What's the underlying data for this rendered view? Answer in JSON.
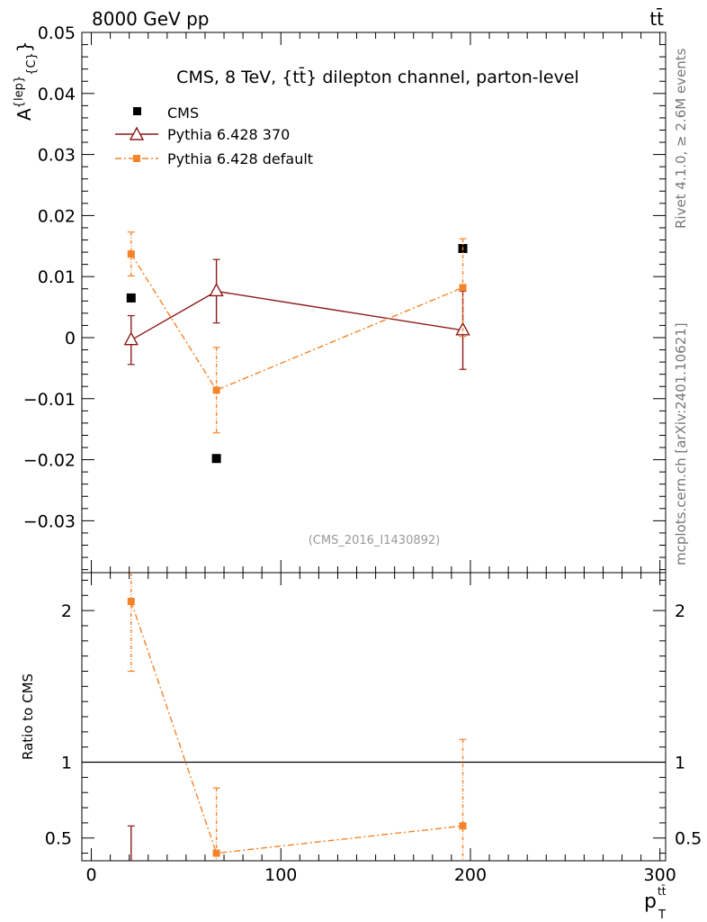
{
  "header": {
    "left_label": "8000 GeV pp",
    "right_label": "tt̄"
  },
  "side_labels": {
    "rivet": "Rivet 4.1.0, ≥ 2.6M events",
    "mcplots": "mcplots.cern.ch [arXiv:2401.10621]"
  },
  "chart_data": {
    "type": "scatter",
    "title": "CMS, 8 TeV, {tt̄} dilepton channel, parton-level",
    "watermark": "(CMS_2016_I1430892)",
    "ylabel": "A^{lep}_{C}",
    "ylabel_base": "A",
    "ylabel_sup": "{lep}",
    "ylabel_sub": "{C}",
    "ylabel_close": "}",
    "xlabel_base": "p",
    "xlabel_sup": "tt̄",
    "xlabel_sub": "T",
    "xlim": [
      -5,
      303
    ],
    "ylim": [
      -0.0385,
      0.05
    ],
    "x_ticks": [
      0,
      100,
      200,
      300
    ],
    "x_tick_labels": [
      "0",
      "100",
      "200",
      "300"
    ],
    "y_ticks": [
      0.05,
      0.04,
      0.03,
      0.02,
      0.01,
      0,
      -0.01,
      -0.02,
      -0.03
    ],
    "y_tick_labels": [
      "0.05",
      "0.04",
      "0.03",
      "0.02",
      "0.01",
      "0",
      "−0.01",
      "−0.02",
      "−0.03"
    ],
    "legend": {
      "position": "top-left",
      "entries": [
        "CMS",
        "Pythia 6.428 370",
        "Pythia 6.428 default"
      ]
    },
    "series": [
      {
        "name": "CMS",
        "color": "#000000",
        "marker": "square",
        "line": "none",
        "x": [
          21,
          66,
          196
        ],
        "y": [
          0.0065,
          -0.0198,
          0.0146
        ],
        "err": [
          0,
          0,
          0
        ]
      },
      {
        "name": "Pythia 6.428 370",
        "color": "#8b1a1a",
        "marker": "triangle",
        "line": "solid",
        "x": [
          21,
          66,
          196
        ],
        "y": [
          -0.0004,
          0.0076,
          0.0012
        ],
        "err": [
          0.004,
          0.0052,
          0.0064
        ]
      },
      {
        "name": "Pythia 6.428 default",
        "color": "#f5832a",
        "marker": "square",
        "line": "dashdot",
        "x": [
          21,
          66,
          196
        ],
        "y": [
          0.0137,
          -0.0086,
          0.0082
        ],
        "err": [
          0.0036,
          0.007,
          0.008
        ]
      }
    ],
    "ratio": {
      "ylabel": "Ratio to CMS",
      "ylim": [
        0.35,
        2.25
      ],
      "y_ticks": [
        0.5,
        1,
        2
      ],
      "y_tick_labels": [
        "0.5",
        "1",
        "2"
      ],
      "reference_line": 1,
      "series": [
        {
          "name": "Pythia 6.428 370",
          "color": "#8b1a1a",
          "x": [
            21
          ],
          "y": [
            null
          ],
          "err_low": [
            0.35
          ],
          "err_high": [
            0.58
          ]
        },
        {
          "name": "Pythia 6.428 default",
          "color": "#f5832a",
          "x": [
            21,
            66,
            196
          ],
          "y": [
            2.06,
            0.4,
            0.58
          ],
          "err_low": [
            1.6,
            0.35,
            0.35
          ],
          "err_high": [
            2.25,
            0.83,
            1.15
          ]
        }
      ]
    }
  }
}
